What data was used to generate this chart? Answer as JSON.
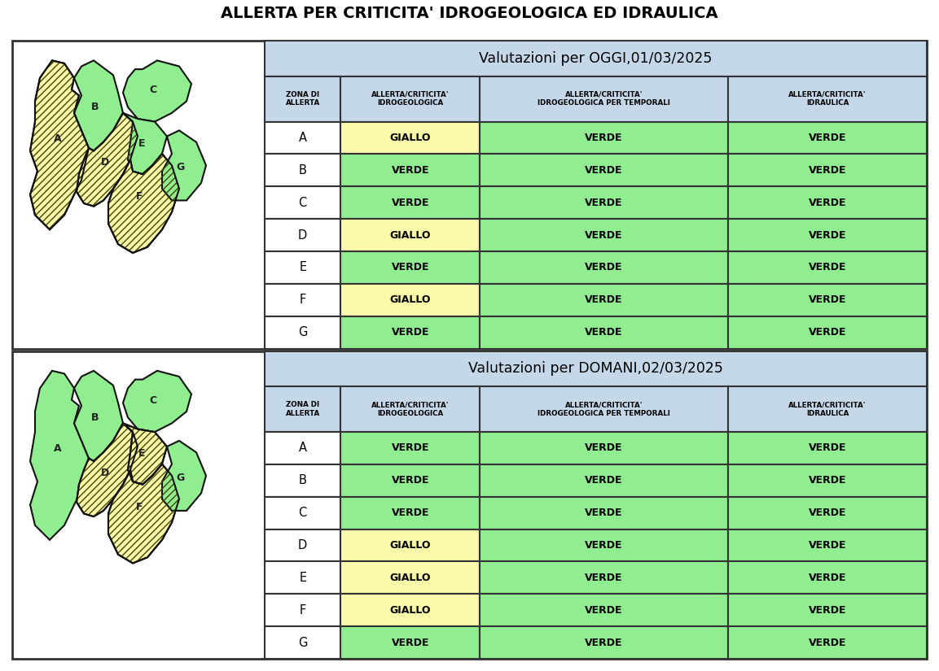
{
  "title": "ALLERTA PER CRITICITA' IDROGEOLOGICA ED IDRAULICA",
  "section1_header_normal": "Valutazioni per ",
  "section1_header_bold": "OGGI,",
  "section1_header_date": "01/03/2025",
  "section2_header_normal": "Valutazioni per ",
  "section2_header_bold": "DOMANI,",
  "section2_header_date": "02/03/2025",
  "col_headers": [
    "ZONA DI\nALLERTA",
    "ALLERTA/CRITICITA'\nIDROGEOLOGICA",
    "ALLERTA/CRITICITA'\nIDROGEOLOGICA PER TEMPORALI",
    "ALLERTA/CRITICITA'\nIDRAULICA"
  ],
  "zones": [
    "A",
    "B",
    "C",
    "D",
    "E",
    "F",
    "G"
  ],
  "today_data": [
    [
      "GIALLO",
      "VERDE",
      "VERDE"
    ],
    [
      "VERDE",
      "VERDE",
      "VERDE"
    ],
    [
      "VERDE",
      "VERDE",
      "VERDE"
    ],
    [
      "GIALLO",
      "VERDE",
      "VERDE"
    ],
    [
      "VERDE",
      "VERDE",
      "VERDE"
    ],
    [
      "GIALLO",
      "VERDE",
      "VERDE"
    ],
    [
      "VERDE",
      "VERDE",
      "VERDE"
    ]
  ],
  "tomorrow_data": [
    [
      "VERDE",
      "VERDE",
      "VERDE"
    ],
    [
      "VERDE",
      "VERDE",
      "VERDE"
    ],
    [
      "VERDE",
      "VERDE",
      "VERDE"
    ],
    [
      "GIALLO",
      "VERDE",
      "VERDE"
    ],
    [
      "GIALLO",
      "VERDE",
      "VERDE"
    ],
    [
      "GIALLO",
      "VERDE",
      "VERDE"
    ],
    [
      "VERDE",
      "VERDE",
      "VERDE"
    ]
  ],
  "color_giallo": "#FAFAAA",
  "color_verde": "#90EE90",
  "color_header_bg": "#C5D8EA",
  "color_border": "#333333",
  "color_map_border": "#111111",
  "hatch_fg": "#444400",
  "hatch_bg": "#FAFAAA"
}
